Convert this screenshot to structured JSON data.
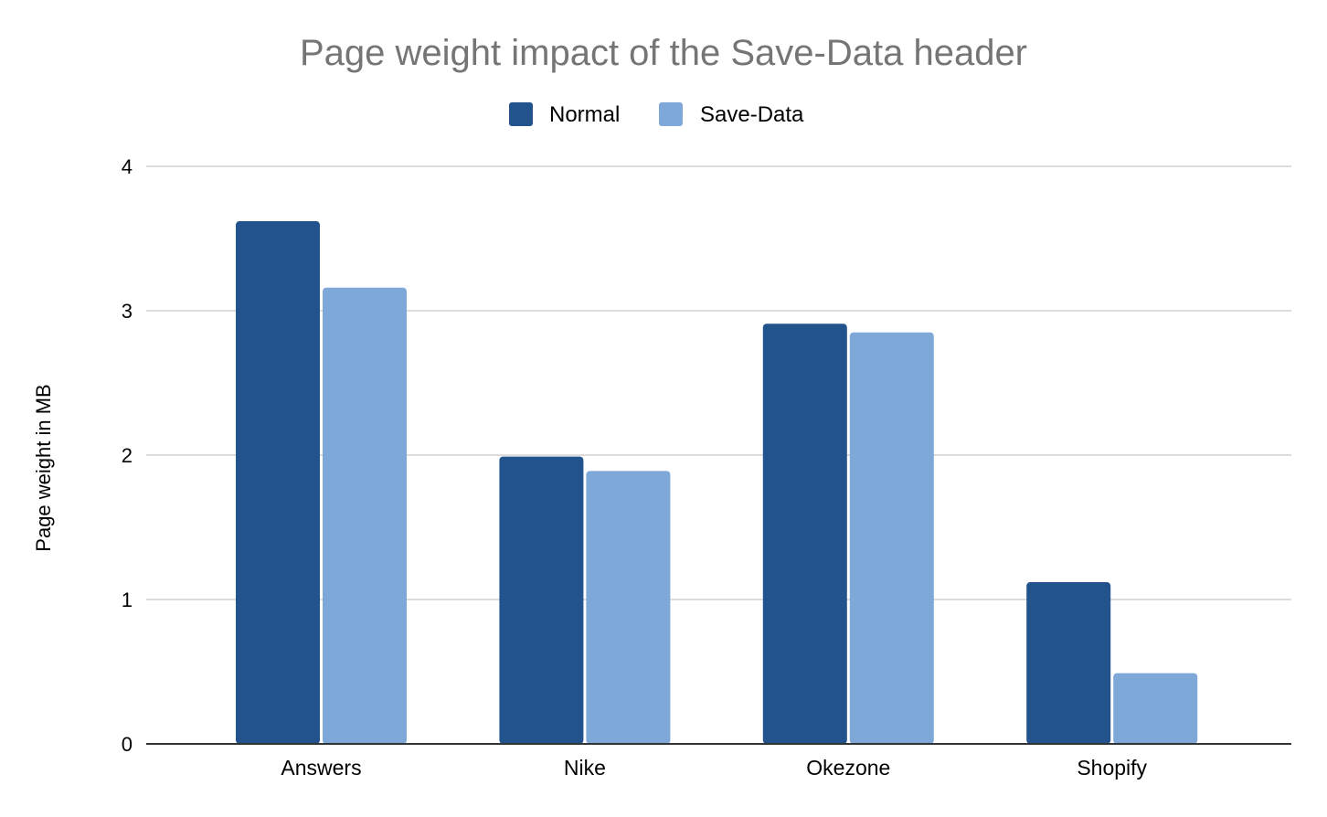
{
  "chart_data": {
    "type": "bar",
    "title": "Page weight impact of the Save-Data header",
    "xlabel": "",
    "ylabel": "Page weight in MB",
    "categories": [
      "Answers",
      "Nike",
      "Okezone",
      "Shopify"
    ],
    "series": [
      {
        "name": "Normal",
        "color": "#22538d",
        "values": [
          3.62,
          1.99,
          2.91,
          1.12
        ]
      },
      {
        "name": "Save-Data",
        "color": "#7ea8d8",
        "values": [
          3.16,
          1.89,
          2.85,
          0.49
        ]
      }
    ],
    "ylim": [
      0,
      4
    ],
    "yticks": [
      "0",
      "1",
      "2",
      "3",
      "4"
    ],
    "grid": true,
    "legend_position": "top-center"
  }
}
